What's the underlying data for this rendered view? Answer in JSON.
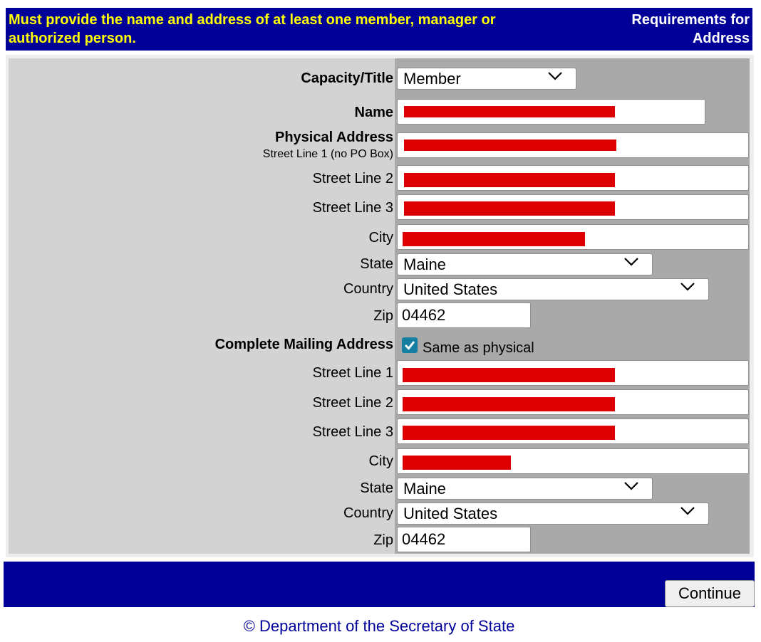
{
  "banner": {
    "message": "Must provide the name and address of at least one member, manager or authorized person.",
    "requirements": "Requirements for Address"
  },
  "form": {
    "capacity": {
      "label": "Capacity/Title",
      "value": "Member"
    },
    "name": {
      "label": "Name",
      "value": ""
    },
    "physical": {
      "heading": "Physical Address",
      "street1_label": "Street Line 1 (no PO Box)",
      "street2_label": "Street Line 2",
      "street3_label": "Street Line 3",
      "city_label": "City",
      "state_label": "State",
      "state_value": "Maine",
      "country_label": "Country",
      "country_value": "United States",
      "zip_label": "Zip",
      "zip_value": "04462"
    },
    "mailing": {
      "heading": "Complete Mailing Address",
      "same_label": "Same as physical",
      "same_checked": true,
      "street1_label": "Street Line 1",
      "street2_label": "Street Line 2",
      "street3_label": "Street Line 3",
      "city_label": "City",
      "state_label": "State",
      "state_value": "Maine",
      "country_label": "Country",
      "country_value": "United States",
      "zip_label": "Zip",
      "zip_value": "04462"
    }
  },
  "continue_label": "Continue",
  "footer": "© Department of the Secretary of State",
  "colors": {
    "banner_bg": "#000099",
    "banner_text": "#ffff00",
    "label_bg": "#d3d3d3",
    "field_bg": "#a9a9a9",
    "redaction": "#dd0000",
    "checkbox": "#167ea0"
  }
}
